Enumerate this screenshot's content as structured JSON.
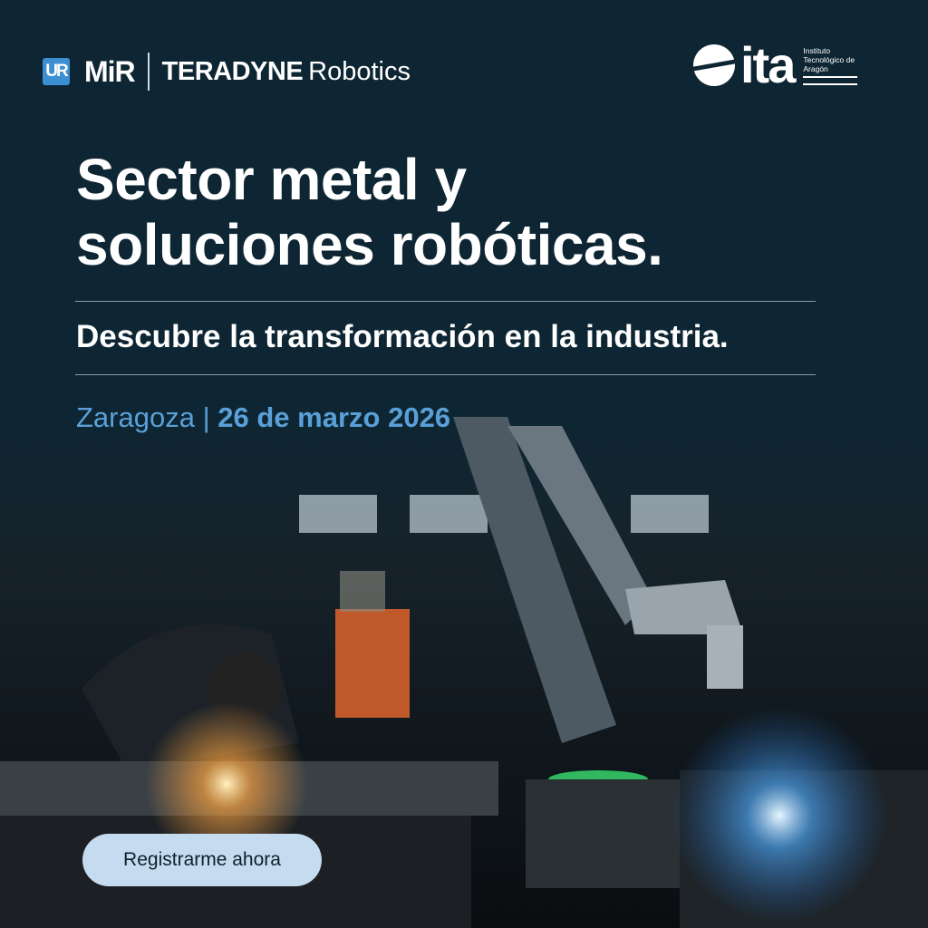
{
  "logos": {
    "ur": "UR",
    "mir": "MiR",
    "teradyne": "TERADYNE",
    "robotics": "Robotics",
    "ita": "ita",
    "ita_subtitle": "Instituto Tecnológico de Aragón"
  },
  "headline": "Sector metal y soluciones robóticas.",
  "subheadline": "Descubre la transformación en la industria.",
  "location": "Zaragoza",
  "separator": "|",
  "date": "26 de marzo 2026",
  "cta_label": "Registrarme ahora",
  "colors": {
    "background": "#0e2633",
    "accent": "#5aa0d8",
    "cta": "#c5dcf0"
  }
}
